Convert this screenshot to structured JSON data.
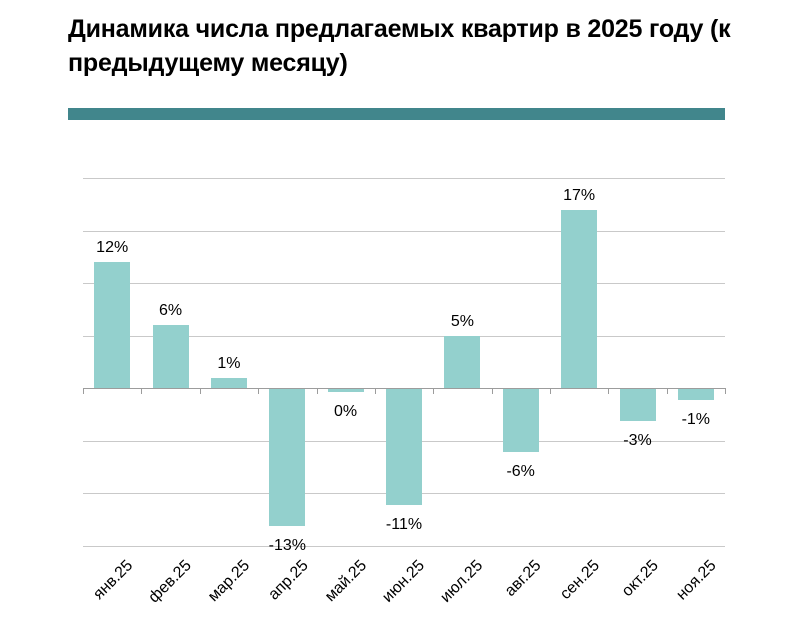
{
  "header": {
    "title": "Динамика числа предлагаемых квартир в 2025 году (к предыдущему месяцу)"
  },
  "chart_data": {
    "type": "bar",
    "title": "Динамика числа предлагаемых квартир в 2025 году (к предыдущему месяцу)",
    "categories": [
      "янв.25",
      "фев.25",
      "мар.25",
      "апр.25",
      "май.25",
      "июн.25",
      "июл.25",
      "авг.25",
      "сен.25",
      "окт.25",
      "ноя.25"
    ],
    "values": [
      12,
      6,
      1,
      -13,
      0,
      -11,
      5,
      -6,
      17,
      -3,
      -1
    ],
    "value_labels": [
      "12%",
      "6%",
      "1%",
      "-13%",
      "0%",
      "-11%",
      "5%",
      "-6%",
      "17%",
      "-3%",
      "-1%"
    ],
    "xlabel": "",
    "ylabel": "",
    "ylim": [
      -15,
      20
    ],
    "gridline_step": 5,
    "grid": true,
    "legend": "none",
    "y_tick_labels_visible": false,
    "colors": {
      "bar": "#93D0CD",
      "accent_divider": "#41868C",
      "gridline": "#C9C9C9",
      "axis": "#9C9C9C",
      "text": "#000000",
      "background": "#FFFFFF"
    }
  }
}
